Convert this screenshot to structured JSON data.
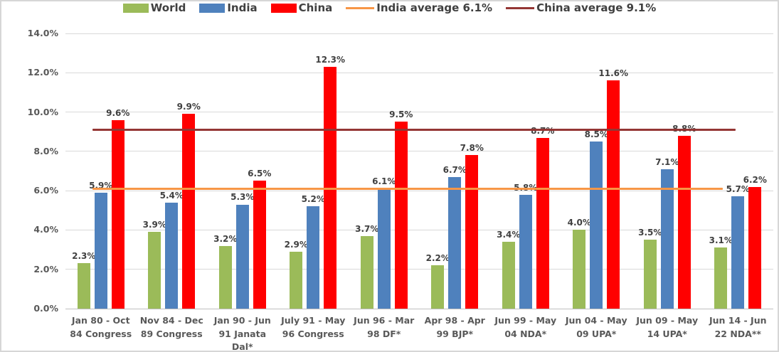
{
  "legend": {
    "items": [
      {
        "label": "World",
        "swatch": "rect",
        "color": "#9BBB59"
      },
      {
        "label": "India",
        "swatch": "rect",
        "color": "#4F81BD"
      },
      {
        "label": "China",
        "swatch": "rect",
        "color": "#FF0000"
      },
      {
        "label": "India average 6.1%",
        "swatch": "line",
        "color": "#F79646"
      },
      {
        "label": "China average 9.1%",
        "swatch": "line",
        "color": "#943634"
      }
    ]
  },
  "chart_data": {
    "type": "bar",
    "title": "",
    "categories": [
      "Jan 80 - Oct 84 Congress",
      "Nov 84 - Dec 89 Congress",
      "Jan 90 - Jun 91 Janata Dal*",
      "July 91 - May 96 Congress",
      "Jun 96 - Mar 98 DF*",
      "Apr 98 - Apr 99 BJP*",
      "Jun 99 - May 04 NDA*",
      "Jun 04 - May 09 UPA*",
      "Jun 09 - May 14 UPA*",
      "Jun 14 - Jun 22 NDA**"
    ],
    "category_lines": [
      [
        "Jan 80 - Oct",
        "84 Congress"
      ],
      [
        "Nov 84 - Dec",
        "89 Congress"
      ],
      [
        "Jan 90 - Jun",
        "91 Janata",
        "Dal*"
      ],
      [
        "July 91 - May",
        "96 Congress"
      ],
      [
        "Jun 96 - Mar",
        "98 DF*"
      ],
      [
        "Apr 98 - Apr",
        "99 BJP*"
      ],
      [
        "Jun 99 - May",
        "04 NDA*"
      ],
      [
        "Jun 04 - May",
        "09 UPA*"
      ],
      [
        "Jun 09 - May",
        "14 UPA*"
      ],
      [
        "Jun 14 - Jun",
        "22 NDA**"
      ]
    ],
    "series": [
      {
        "name": "World",
        "color": "#9BBB59",
        "values": [
          2.3,
          3.9,
          3.2,
          2.9,
          3.7,
          2.2,
          3.4,
          4.0,
          3.5,
          3.1
        ]
      },
      {
        "name": "India",
        "color": "#4F81BD",
        "values": [
          5.9,
          5.4,
          5.3,
          5.2,
          6.1,
          6.7,
          5.8,
          8.5,
          7.1,
          5.7
        ]
      },
      {
        "name": "China",
        "color": "#FF0000",
        "values": [
          9.6,
          9.9,
          6.5,
          12.3,
          9.5,
          7.8,
          8.7,
          11.6,
          8.8,
          6.2
        ]
      }
    ],
    "reference_lines": [
      {
        "label": "India average 6.1%",
        "value": 6.1,
        "color": "#F79646"
      },
      {
        "label": "China average 9.1%",
        "value": 9.1,
        "color": "#943634"
      }
    ],
    "y_axis": {
      "min": 0,
      "max": 14,
      "step": 2,
      "ticks": [
        "0.0%",
        "2.0%",
        "4.0%",
        "6.0%",
        "8.0%",
        "10.0%",
        "12.0%",
        "14.0%"
      ]
    },
    "data_labels": true,
    "data_label_suffix": "%",
    "grid": true,
    "legend_position": "top"
  },
  "colors": {
    "grid": "#D9D9D9",
    "zero_axis": "#BFBFBF",
    "axis_text": "#595959",
    "data_label_text": "#404040",
    "background": "#FFFFFF"
  }
}
